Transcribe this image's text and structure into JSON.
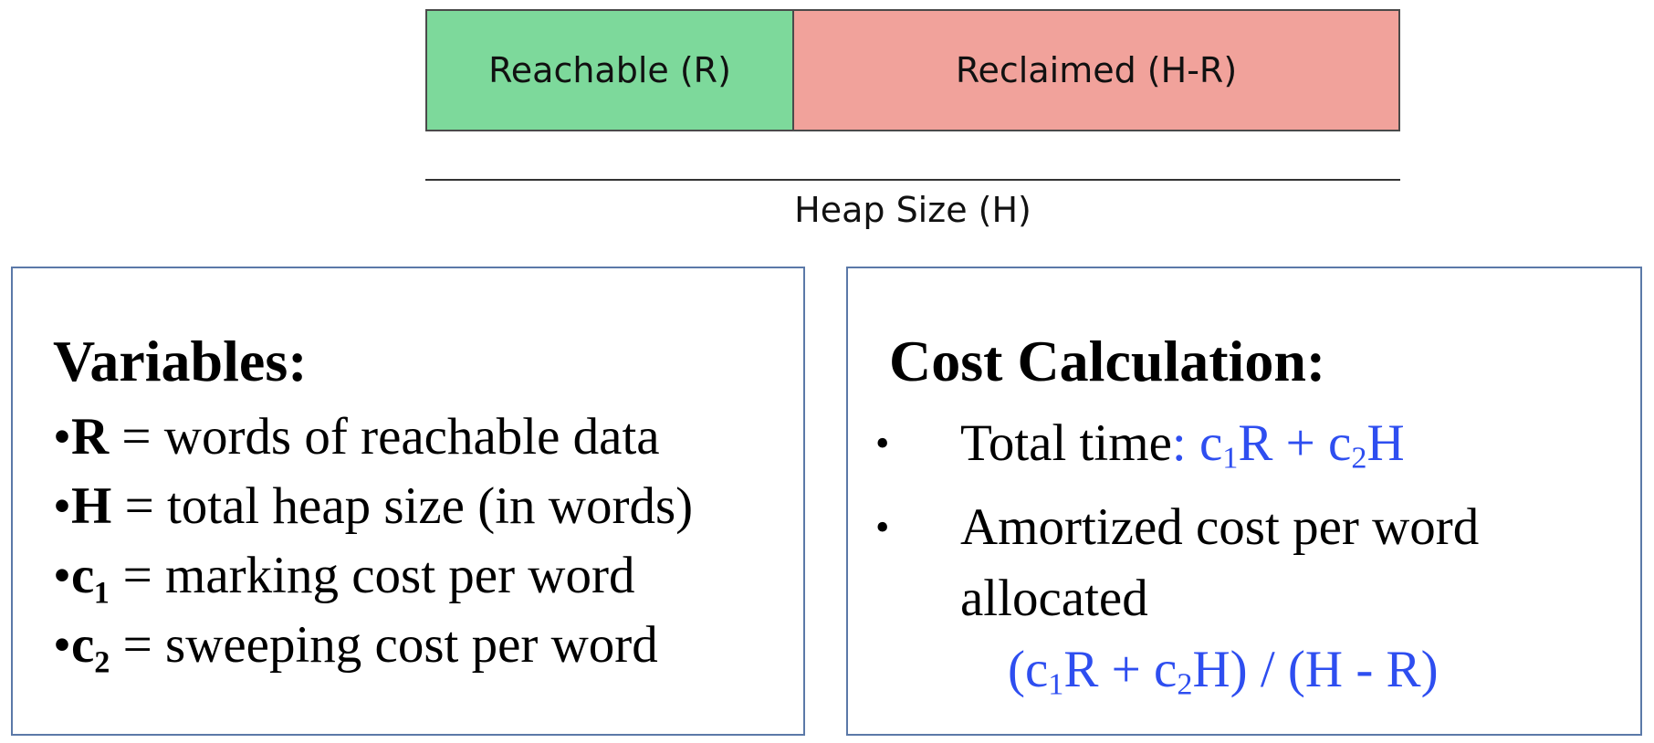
{
  "heap_bar": {
    "reachable_label": "Reachable (R)",
    "reclaimed_label": "Reclaimed (H-R)",
    "colors": {
      "reachable": "#7dd99b",
      "reclaimed": "#f1a29b"
    }
  },
  "heap_size_label": "Heap Size (H)",
  "variables": {
    "title": "Variables:",
    "items": [
      {
        "bullet": "•",
        "sym": "R",
        "def": " = words of reachable data"
      },
      {
        "bullet": "•",
        "sym": "H",
        "def": " = total heap size (in words)"
      },
      {
        "bullet": "•",
        "sym": "c₁",
        "def": " = marking cost per word"
      },
      {
        "bullet": "•",
        "sym": "c₂",
        "def": " = sweeping cost per word"
      }
    ]
  },
  "cost": {
    "title": "Cost Calculation:",
    "bullet": "•",
    "total_time_label": "Total time",
    "total_time_sep": ": ",
    "total_time_formula": {
      "c1": "c",
      "sub1": "1",
      "r": "R + ",
      "c2": "c",
      "sub2": "2",
      "h": "H"
    },
    "amortized_line1": "Amortized cost per word",
    "amortized_line2": "allocated",
    "amortized_formula": {
      "p1": "(c",
      "sub1": "1",
      "p2": "R + c",
      "sub2": "2",
      "p3": "H) / (H - R)"
    },
    "formula_color": "#2e4ef0"
  }
}
